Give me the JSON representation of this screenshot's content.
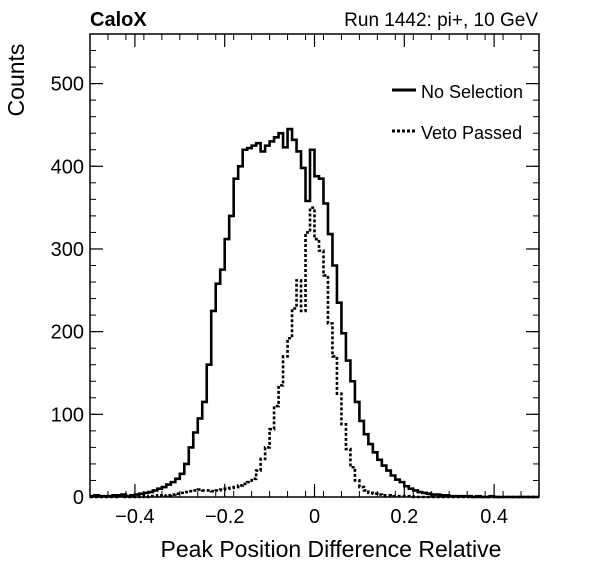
{
  "header": {
    "experiment": "CaloX",
    "run_info": "Run 1442: pi+, 10 GeV"
  },
  "chart_data": {
    "type": "line",
    "title": "",
    "xlabel": "Peak Position Difference Relative",
    "ylabel": "Counts",
    "xlim": [
      -0.5,
      0.5
    ],
    "ylim": [
      0,
      560
    ],
    "x_ticks": [
      -0.4,
      -0.2,
      0,
      0.2,
      0.4
    ],
    "x_tick_labels": [
      "−0.4",
      "−0.2",
      "0",
      "0.2",
      "0.4"
    ],
    "y_ticks": [
      0,
      100,
      200,
      300,
      400,
      500
    ],
    "y_tick_labels": [
      "0",
      "100",
      "200",
      "300",
      "400",
      "500"
    ],
    "legend_position": "top-right",
    "style": "step-histogram",
    "bin_width": 0.01,
    "x": [
      -0.495,
      -0.485,
      -0.475,
      -0.465,
      -0.455,
      -0.445,
      -0.435,
      -0.425,
      -0.415,
      -0.405,
      -0.395,
      -0.385,
      -0.375,
      -0.365,
      -0.355,
      -0.345,
      -0.335,
      -0.325,
      -0.315,
      -0.305,
      -0.295,
      -0.285,
      -0.275,
      -0.265,
      -0.255,
      -0.245,
      -0.235,
      -0.225,
      -0.215,
      -0.205,
      -0.195,
      -0.185,
      -0.175,
      -0.165,
      -0.155,
      -0.145,
      -0.135,
      -0.125,
      -0.115,
      -0.105,
      -0.095,
      -0.085,
      -0.075,
      -0.065,
      -0.055,
      -0.045,
      -0.035,
      -0.025,
      -0.015,
      -0.005,
      0.005,
      0.015,
      0.025,
      0.035,
      0.045,
      0.055,
      0.065,
      0.075,
      0.085,
      0.095,
      0.105,
      0.115,
      0.125,
      0.135,
      0.145,
      0.155,
      0.165,
      0.175,
      0.185,
      0.195,
      0.205,
      0.215,
      0.225,
      0.235,
      0.245,
      0.255,
      0.265,
      0.275,
      0.285,
      0.295,
      0.305,
      0.315,
      0.325,
      0.335,
      0.345,
      0.355,
      0.365,
      0.375,
      0.385,
      0.395,
      0.405,
      0.415,
      0.425,
      0.435,
      0.445,
      0.455,
      0.465,
      0.475,
      0.485,
      0.495
    ],
    "series": [
      {
        "name": "No Selection",
        "line_style": "solid",
        "values": [
          1,
          2,
          1,
          1,
          1,
          2,
          2,
          3,
          1,
          2,
          3,
          4,
          5,
          6,
          8,
          10,
          12,
          15,
          18,
          22,
          28,
          40,
          60,
          78,
          95,
          115,
          160,
          225,
          258,
          275,
          312,
          340,
          385,
          400,
          420,
          422,
          425,
          428,
          418,
          425,
          430,
          435,
          440,
          423,
          445,
          432,
          418,
          398,
          358,
          420,
          388,
          385,
          355,
          318,
          280,
          235,
          198,
          165,
          140,
          115,
          92,
          76,
          64,
          54,
          45,
          38,
          32,
          26,
          21,
          18,
          13,
          10,
          8,
          6,
          5,
          4,
          3,
          3,
          2,
          2,
          1,
          1,
          1,
          1,
          1,
          0,
          1,
          0,
          0,
          1,
          0,
          0,
          0,
          0,
          0,
          0,
          0,
          0,
          0,
          0
        ]
      },
      {
        "name": "Veto Passed",
        "line_style": "dotted",
        "values": [
          0,
          0,
          0,
          0,
          0,
          0,
          1,
          0,
          0,
          0,
          0,
          1,
          0,
          1,
          1,
          2,
          1,
          2,
          3,
          4,
          5,
          6,
          7,
          8,
          9,
          8,
          8,
          7,
          8,
          9,
          10,
          11,
          12,
          14,
          16,
          18,
          22,
          32,
          46,
          60,
          82,
          110,
          135,
          170,
          192,
          228,
          262,
          225,
          320,
          350,
          312,
          298,
          268,
          210,
          170,
          125,
          88,
          58,
          36,
          20,
          12,
          8,
          5,
          4,
          3,
          2,
          2,
          1,
          1,
          1,
          1,
          1,
          0,
          0,
          0,
          0,
          0,
          0,
          0,
          0,
          0,
          0,
          0,
          0,
          0,
          0,
          0,
          0,
          0,
          0,
          0,
          0,
          0,
          0,
          0,
          0,
          0,
          0,
          0,
          0
        ]
      }
    ]
  }
}
